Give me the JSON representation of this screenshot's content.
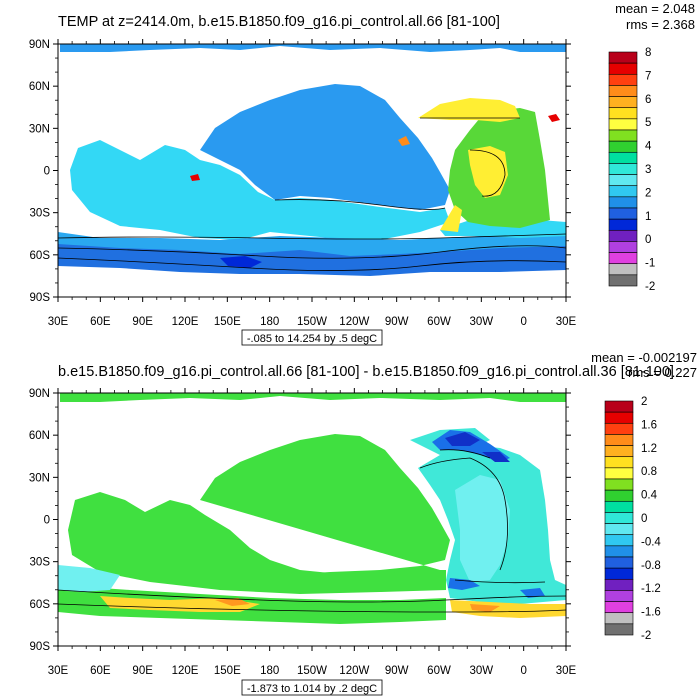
{
  "panels": [
    {
      "title": "TEMP at z=2414.0m, b.e15.B1850.f09_g16.pi_control.all.66 [81-100]",
      "mean_text": "mean = 2.048",
      "rms_text": "rms = 2.368",
      "range_text": "-.085 to 14.254 by .5 degC",
      "colorbar": {
        "labels": [
          "8",
          "7",
          "6",
          "5",
          "4",
          "3",
          "2",
          "1",
          "0",
          "-1",
          "-2"
        ],
        "colors": [
          "#b8001a",
          "#e60000",
          "#ff4010",
          "#ff8c1a",
          "#ffb020",
          "#ffe020",
          "#ffff40",
          "#80e020",
          "#30d030",
          "#00e0a0",
          "#30e8d8",
          "#60e8f0",
          "#30c8f0",
          "#2090e8",
          "#2060e0",
          "#0028d8",
          "#7020c0",
          "#b040e0",
          "#e040e0",
          "#c0c0c0",
          "#707070"
        ]
      }
    },
    {
      "title": "b.e15.B1850.f09_g16.pi_control.all.66 [81-100] - b.e15.B1850.f09_g16.pi_control.all.36 [81-100]",
      "mean_text": "mean = -0.002197",
      "rms_text": "rms = 0.227",
      "range_text": "-1.873 to 1.014 by .2 degC",
      "colorbar": {
        "labels": [
          "2",
          "1.6",
          "1.2",
          "0.8",
          "0.4",
          "0",
          "-0.4",
          "-0.8",
          "-1.2",
          "-1.6",
          "-2"
        ],
        "colors": [
          "#b8001a",
          "#e60000",
          "#ff4010",
          "#ff8c1a",
          "#ffb020",
          "#ffe020",
          "#ffff40",
          "#80e020",
          "#30d030",
          "#00e0a0",
          "#30e8d8",
          "#60e8f0",
          "#30c8f0",
          "#2090e8",
          "#2060e0",
          "#0028d8",
          "#7020c0",
          "#b040e0",
          "#e040e0",
          "#c0c0c0",
          "#707070"
        ]
      }
    }
  ],
  "axes": {
    "lat_labels": [
      "90N",
      "60N",
      "30N",
      "0",
      "30S",
      "60S",
      "90S"
    ],
    "lon_labels": [
      "30E",
      "60E",
      "90E",
      "120E",
      "150E",
      "180",
      "150W",
      "120W",
      "90W",
      "60W",
      "30W",
      "0",
      "30E"
    ]
  },
  "colors": {
    "p1_pacific": "#2a9af0",
    "p1_indian": "#33d8f5",
    "p1_southern": "#2aa8f0",
    "p1_deep_south": "#2070e0",
    "p1_atl_yellow": "#ffee33",
    "p1_atl_green": "#58d838",
    "p1_arctic": "#2a9af0",
    "p2_main": "#40e040",
    "p2_cyan": "#40e8d8",
    "p2_lightcyan": "#70f0f0",
    "p2_blue": "#1a70e8",
    "p2_deepblue": "#1030c8",
    "p2_yellow": "#ffd830",
    "p2_orange": "#ff9820"
  }
}
